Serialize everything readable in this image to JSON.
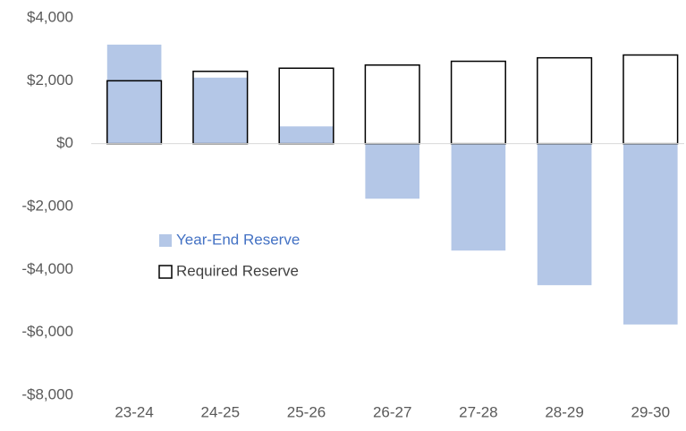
{
  "chart_data": {
    "type": "bar",
    "categories": [
      "23-24",
      "24-25",
      "25-26",
      "26-27",
      "27-28",
      "28-29",
      "29-30"
    ],
    "series": [
      {
        "name": "Year-End Reserve",
        "color": "#b4c7e7",
        "fill": "solid",
        "label_color": "#4472c4",
        "values": [
          3150,
          2100,
          550,
          -1750,
          -3400,
          -4500,
          -5750
        ]
      },
      {
        "name": "Required Reserve",
        "color": "#000000",
        "fill": "none",
        "label_color": "#404040",
        "values": [
          2000,
          2300,
          2400,
          2500,
          2620,
          2730,
          2820
        ]
      }
    ],
    "ylim": [
      -8000,
      4000
    ],
    "yticks": [
      {
        "value": -8000,
        "label": "-$8,000"
      },
      {
        "value": -6000,
        "label": "-$6,000"
      },
      {
        "value": -4000,
        "label": "-$4,000"
      },
      {
        "value": -2000,
        "label": "-$2,000"
      },
      {
        "value": 0,
        "label": "$0"
      },
      {
        "value": 2000,
        "label": "$2,000"
      },
      {
        "value": 4000,
        "label": "$4,000"
      }
    ],
    "grid": false,
    "legend": "center-left"
  }
}
